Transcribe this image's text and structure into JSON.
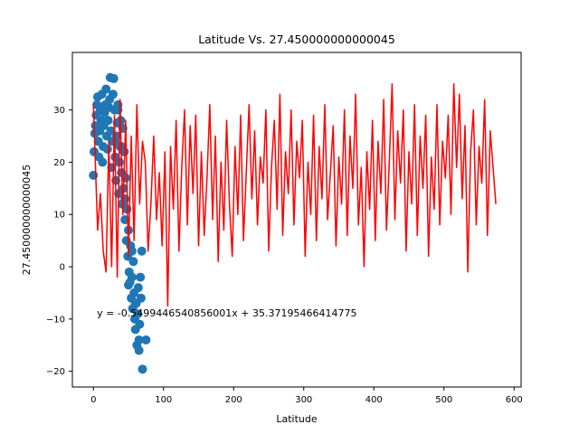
{
  "chart_data": {
    "type": "scatter",
    "title": "Latitude Vs. 27.450000000000045",
    "xlabel": "Latitude",
    "ylabel": "27.450000000000045",
    "xlim": [
      -30,
      610
    ],
    "ylim": [
      -23,
      41
    ],
    "xticks": [
      0,
      100,
      200,
      300,
      400,
      500,
      600
    ],
    "yticks": [
      -20,
      -10,
      0,
      10,
      20,
      30
    ],
    "grid": false,
    "annotation": {
      "text": "y = -0.5499446540856001x + 35.37195466414775",
      "x": 5,
      "y": -9.5
    },
    "series": [
      {
        "type": "scatter",
        "color": "#1f77b4",
        "points": [
          [
            0,
            17.5
          ],
          [
            1,
            22
          ],
          [
            2,
            25.5
          ],
          [
            3,
            27
          ],
          [
            4,
            29
          ],
          [
            5,
            31
          ],
          [
            6,
            32.5
          ],
          [
            7,
            24
          ],
          [
            8,
            21
          ],
          [
            9,
            26
          ],
          [
            10,
            30
          ],
          [
            11,
            28
          ],
          [
            12,
            33
          ],
          [
            13,
            20
          ],
          [
            14,
            23
          ],
          [
            15,
            27
          ],
          [
            16,
            29.5
          ],
          [
            17,
            31
          ],
          [
            18,
            34
          ],
          [
            19,
            25
          ],
          [
            20,
            22.5
          ],
          [
            21,
            28
          ],
          [
            22,
            30.5
          ],
          [
            23,
            32
          ],
          [
            24,
            36.2
          ],
          [
            25,
            26
          ],
          [
            26,
            19
          ],
          [
            27,
            24
          ],
          [
            28,
            33
          ],
          [
            29,
            36
          ],
          [
            30,
            30
          ],
          [
            31,
            21
          ],
          [
            32,
            16.5
          ],
          [
            33,
            25
          ],
          [
            34,
            27.5
          ],
          [
            35,
            31
          ],
          [
            36,
            14
          ],
          [
            37,
            20
          ],
          [
            38,
            23
          ],
          [
            39,
            28
          ],
          [
            40,
            18
          ],
          [
            41,
            12
          ],
          [
            42,
            26.5
          ],
          [
            43,
            15
          ],
          [
            44,
            22
          ],
          [
            45,
            9
          ],
          [
            46,
            17
          ],
          [
            47,
            5
          ],
          [
            48,
            11
          ],
          [
            49,
            2
          ],
          [
            50,
            7
          ],
          [
            51,
            -1
          ],
          [
            52,
            -3
          ],
          [
            53,
            4
          ],
          [
            54,
            -6
          ],
          [
            55,
            -2
          ],
          [
            56,
            -8
          ],
          [
            57,
            1
          ],
          [
            58,
            -5
          ],
          [
            59,
            -10
          ],
          [
            60,
            -12
          ],
          [
            61,
            -7
          ],
          [
            62,
            -15
          ],
          [
            63,
            -9
          ],
          [
            64,
            -4
          ],
          [
            65,
            -16
          ],
          [
            66,
            -11
          ],
          [
            67,
            -2
          ],
          [
            68,
            -6
          ],
          [
            69,
            3
          ],
          [
            70,
            -19.6
          ],
          [
            65,
            -14
          ],
          [
            75,
            -14
          ],
          [
            60,
            -7
          ],
          [
            55,
            3
          ],
          [
            50,
            -3.5
          ],
          [
            45,
            13
          ],
          [
            40,
            23
          ],
          [
            35,
            30
          ],
          [
            30,
            24
          ]
        ]
      },
      {
        "type": "line",
        "color": "#ff0000",
        "points": [
          [
            0,
            31
          ],
          [
            6,
            7
          ],
          [
            10,
            14
          ],
          [
            14,
            3
          ],
          [
            18,
            -1
          ],
          [
            22,
            24
          ],
          [
            26,
            0
          ],
          [
            30,
            29
          ],
          [
            34,
            -2
          ],
          [
            38,
            32
          ],
          [
            42,
            10
          ],
          [
            46,
            28
          ],
          [
            50,
            2
          ],
          [
            54,
            25
          ],
          [
            58,
            5
          ],
          [
            62,
            31
          ],
          [
            66,
            12
          ],
          [
            70,
            24
          ],
          [
            74,
            20
          ],
          [
            78,
            3
          ],
          [
            82,
            12
          ],
          [
            86,
            25
          ],
          [
            90,
            9
          ],
          [
            94,
            18
          ],
          [
            98,
            4
          ],
          [
            102,
            22
          ],
          [
            106,
            -7.5
          ],
          [
            110,
            23
          ],
          [
            114,
            11
          ],
          [
            118,
            28
          ],
          [
            122,
            3
          ],
          [
            126,
            19
          ],
          [
            130,
            30
          ],
          [
            134,
            8
          ],
          [
            138,
            27
          ],
          [
            142,
            14
          ],
          [
            146,
            29
          ],
          [
            150,
            4
          ],
          [
            154,
            22
          ],
          [
            158,
            6
          ],
          [
            162,
            17
          ],
          [
            166,
            31
          ],
          [
            170,
            9
          ],
          [
            174,
            25
          ],
          [
            178,
            1
          ],
          [
            182,
            20
          ],
          [
            186,
            7
          ],
          [
            190,
            28
          ],
          [
            194,
            12
          ],
          [
            198,
            2
          ],
          [
            202,
            23
          ],
          [
            206,
            10
          ],
          [
            210,
            29
          ],
          [
            214,
            5
          ],
          [
            218,
            18
          ],
          [
            222,
            31
          ],
          [
            226,
            13
          ],
          [
            230,
            26
          ],
          [
            234,
            8
          ],
          [
            238,
            21
          ],
          [
            242,
            16
          ],
          [
            246,
            30
          ],
          [
            250,
            3
          ],
          [
            254,
            19
          ],
          [
            258,
            28
          ],
          [
            262,
            11
          ],
          [
            266,
            33
          ],
          [
            270,
            6
          ],
          [
            274,
            22
          ],
          [
            278,
            14
          ],
          [
            282,
            30
          ],
          [
            286,
            8
          ],
          [
            290,
            24
          ],
          [
            294,
            17
          ],
          [
            298,
            28
          ],
          [
            302,
            2
          ],
          [
            306,
            20
          ],
          [
            310,
            10
          ],
          [
            314,
            29
          ],
          [
            318,
            5
          ],
          [
            322,
            23
          ],
          [
            326,
            13
          ],
          [
            330,
            31
          ],
          [
            334,
            9
          ],
          [
            338,
            18
          ],
          [
            342,
            27
          ],
          [
            346,
            4
          ],
          [
            350,
            21
          ],
          [
            354,
            12
          ],
          [
            358,
            30
          ],
          [
            362,
            6
          ],
          [
            366,
            25
          ],
          [
            370,
            15
          ],
          [
            374,
            33
          ],
          [
            378,
            8
          ],
          [
            382,
            19
          ],
          [
            386,
            0
          ],
          [
            390,
            22
          ],
          [
            394,
            11
          ],
          [
            398,
            28
          ],
          [
            402,
            5
          ],
          [
            406,
            24
          ],
          [
            410,
            14
          ],
          [
            414,
            32
          ],
          [
            418,
            7
          ],
          [
            422,
            20
          ],
          [
            426,
            35
          ],
          [
            430,
            9
          ],
          [
            434,
            26
          ],
          [
            438,
            16
          ],
          [
            442,
            30
          ],
          [
            446,
            3
          ],
          [
            450,
            22
          ],
          [
            454,
            12
          ],
          [
            458,
            31
          ],
          [
            462,
            6
          ],
          [
            466,
            25
          ],
          [
            470,
            15
          ],
          [
            474,
            29
          ],
          [
            478,
            2
          ],
          [
            482,
            21
          ],
          [
            486,
            11
          ],
          [
            490,
            31
          ],
          [
            494,
            8
          ],
          [
            498,
            24
          ],
          [
            502,
            17
          ],
          [
            506,
            29
          ],
          [
            510,
            10
          ],
          [
            514,
            35
          ],
          [
            518,
            19
          ],
          [
            522,
            33
          ],
          [
            526,
            13
          ],
          [
            530,
            27
          ],
          [
            534,
            -1
          ],
          [
            538,
            22
          ],
          [
            542,
            30
          ],
          [
            546,
            8
          ],
          [
            550,
            23
          ],
          [
            554,
            16
          ],
          [
            558,
            32
          ],
          [
            562,
            6
          ],
          [
            566,
            26
          ],
          [
            570,
            19
          ],
          [
            574,
            12
          ]
        ]
      }
    ]
  }
}
